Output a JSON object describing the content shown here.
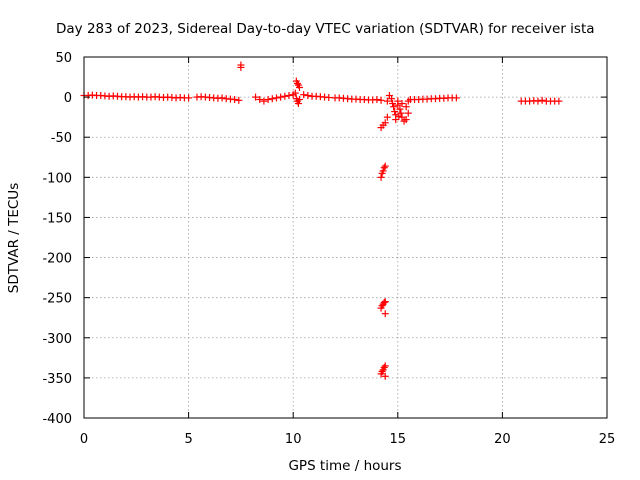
{
  "chart_data": {
    "type": "scatter",
    "title": "Day 283 of 2023, Sidereal Day-to-day VTEC variation (SDTVAR) for receiver ista",
    "xlabel": "GPS time / hours",
    "ylabel": "SDTVAR / TECUs",
    "xlim": [
      0,
      25
    ],
    "ylim": [
      -400,
      50
    ],
    "xticks": [
      0,
      5,
      10,
      15,
      20,
      25
    ],
    "xtick_labels": [
      "0",
      "5",
      "10",
      "15",
      "20",
      "25"
    ],
    "yticks": [
      50,
      0,
      -50,
      -100,
      -150,
      -200,
      -250,
      -300,
      -350,
      -400
    ],
    "ytick_labels": [
      "50",
      "0",
      "-50",
      "-100",
      "-150",
      "-200",
      "-250",
      "-300",
      "-350",
      "-400"
    ],
    "grid": true,
    "marker": "+",
    "color": "#ff0000",
    "series": [
      {
        "name": "SDTVAR",
        "points": [
          [
            0.0,
            2
          ],
          [
            0.2,
            2
          ],
          [
            0.4,
            2.5
          ],
          [
            0.6,
            2
          ],
          [
            0.8,
            2
          ],
          [
            1.0,
            1.5
          ],
          [
            1.2,
            1
          ],
          [
            1.4,
            1.5
          ],
          [
            1.6,
            1
          ],
          [
            1.8,
            0.5
          ],
          [
            2.0,
            0.5
          ],
          [
            2.2,
            0
          ],
          [
            2.4,
            0.5
          ],
          [
            2.6,
            0
          ],
          [
            2.8,
            0.5
          ],
          [
            3.0,
            0
          ],
          [
            3.2,
            0
          ],
          [
            3.4,
            0.5
          ],
          [
            3.6,
            0
          ],
          [
            3.8,
            -0.5
          ],
          [
            4.0,
            0
          ],
          [
            4.2,
            -0.5
          ],
          [
            4.4,
            -1
          ],
          [
            4.6,
            -0.5
          ],
          [
            4.8,
            -1
          ],
          [
            5.0,
            -1
          ],
          [
            5.4,
            0
          ],
          [
            5.6,
            0.5
          ],
          [
            5.8,
            0
          ],
          [
            6.0,
            -0.5
          ],
          [
            6.2,
            -1
          ],
          [
            6.4,
            -1.5
          ],
          [
            6.6,
            -1
          ],
          [
            6.8,
            -2
          ],
          [
            7.0,
            -2.5
          ],
          [
            7.2,
            -3
          ],
          [
            7.4,
            -4
          ],
          [
            7.5,
            40
          ],
          [
            7.5,
            37
          ],
          [
            8.2,
            0
          ],
          [
            8.4,
            -3
          ],
          [
            8.6,
            -5
          ],
          [
            8.8,
            -3
          ],
          [
            9.0,
            -2
          ],
          [
            9.2,
            -1
          ],
          [
            9.4,
            0
          ],
          [
            9.6,
            1
          ],
          [
            9.8,
            2
          ],
          [
            10.0,
            3
          ],
          [
            10.1,
            5
          ],
          [
            10.15,
            20
          ],
          [
            10.2,
            17
          ],
          [
            10.25,
            15
          ],
          [
            10.3,
            12
          ],
          [
            10.15,
            -2
          ],
          [
            10.2,
            -5
          ],
          [
            10.25,
            -8
          ],
          [
            10.3,
            -3
          ],
          [
            10.5,
            3
          ],
          [
            10.7,
            2
          ],
          [
            10.9,
            1
          ],
          [
            11.1,
            1
          ],
          [
            11.3,
            0.5
          ],
          [
            11.5,
            0
          ],
          [
            11.7,
            -0.5
          ],
          [
            12.0,
            -1
          ],
          [
            12.2,
            -1
          ],
          [
            12.4,
            -1.5
          ],
          [
            12.6,
            -2
          ],
          [
            12.8,
            -2.5
          ],
          [
            13.0,
            -2.5
          ],
          [
            13.2,
            -3
          ],
          [
            13.4,
            -3
          ],
          [
            13.6,
            -3.5
          ],
          [
            13.8,
            -3.5
          ],
          [
            14.0,
            -3
          ],
          [
            14.2,
            -4
          ],
          [
            14.2,
            -38
          ],
          [
            14.3,
            -35
          ],
          [
            14.4,
            -32
          ],
          [
            14.5,
            -25
          ],
          [
            14.2,
            -100
          ],
          [
            14.25,
            -95
          ],
          [
            14.3,
            -92
          ],
          [
            14.35,
            -88
          ],
          [
            14.4,
            -86
          ],
          [
            14.2,
            -263
          ],
          [
            14.25,
            -260
          ],
          [
            14.3,
            -258
          ],
          [
            14.35,
            -256
          ],
          [
            14.4,
            -255
          ],
          [
            14.4,
            -270
          ],
          [
            14.2,
            -345
          ],
          [
            14.25,
            -342
          ],
          [
            14.3,
            -340
          ],
          [
            14.35,
            -337
          ],
          [
            14.4,
            -335
          ],
          [
            14.4,
            -348
          ],
          [
            14.5,
            -5
          ],
          [
            14.6,
            2
          ],
          [
            14.7,
            -2
          ],
          [
            14.75,
            -8
          ],
          [
            14.8,
            -12
          ],
          [
            14.85,
            -18
          ],
          [
            14.9,
            -22
          ],
          [
            15.0,
            -10
          ],
          [
            15.1,
            -15
          ],
          [
            15.15,
            -20
          ],
          [
            15.2,
            -25
          ],
          [
            15.3,
            -30
          ],
          [
            15.4,
            -28
          ],
          [
            15.5,
            -20
          ],
          [
            15.0,
            -5
          ],
          [
            15.2,
            -8
          ],
          [
            15.4,
            -12
          ],
          [
            15.5,
            -5
          ],
          [
            15.6,
            -3
          ],
          [
            14.9,
            -28
          ],
          [
            15.05,
            -24
          ],
          [
            15.8,
            -3
          ],
          [
            16.0,
            -3
          ],
          [
            16.2,
            -2.5
          ],
          [
            16.4,
            -2.5
          ],
          [
            16.6,
            -2
          ],
          [
            16.8,
            -2
          ],
          [
            17.0,
            -1.5
          ],
          [
            17.2,
            -1.5
          ],
          [
            17.4,
            -1
          ],
          [
            17.6,
            -1
          ],
          [
            17.8,
            -1
          ],
          [
            20.9,
            -5
          ],
          [
            21.1,
            -5
          ],
          [
            21.3,
            -5
          ],
          [
            21.5,
            -4.5
          ],
          [
            21.7,
            -5
          ],
          [
            21.9,
            -4
          ],
          [
            22.1,
            -5
          ],
          [
            22.3,
            -5
          ],
          [
            22.5,
            -5
          ],
          [
            22.7,
            -5
          ]
        ]
      }
    ]
  }
}
